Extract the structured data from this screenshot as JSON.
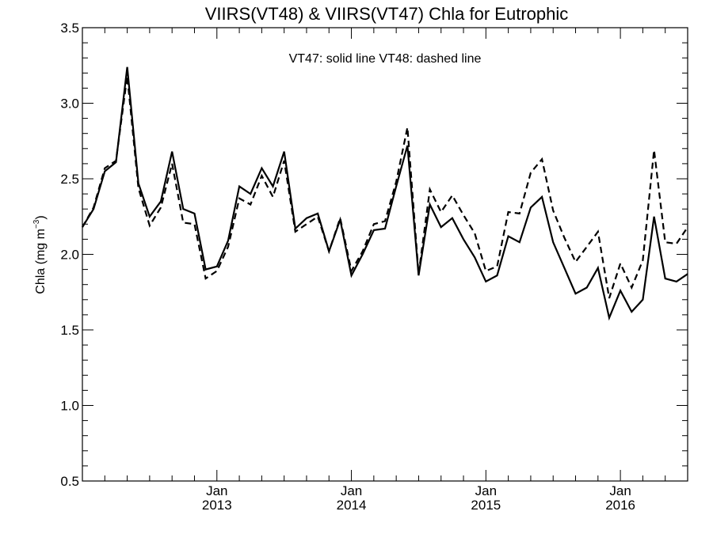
{
  "chart_data": {
    "type": "line",
    "title": "VIIRS(VT48) & VIIRS(VT47)  Chla for Eutrophic",
    "annotation": "VT47: solid line   VT48: dashed line",
    "ylabel_main": "Chla (mg m",
    "ylabel_sup": "−3",
    "ylabel_close": ")",
    "ylim": [
      0.5,
      3.5
    ],
    "y_ticks": [
      0.5,
      1.0,
      1.5,
      2.0,
      2.5,
      3.0,
      3.5
    ],
    "y_tick_labels": [
      "0.5",
      "1.0",
      "1.5",
      "2.0",
      "2.5",
      "3.0",
      "3.5"
    ],
    "x_range_months": [
      "2012-01",
      "2016-07"
    ],
    "x_labels": [
      {
        "month": "Jan",
        "year": "2013",
        "date": "2013-01"
      },
      {
        "month": "Jan",
        "year": "2014",
        "date": "2014-01"
      },
      {
        "month": "Jan",
        "year": "2015",
        "date": "2015-01"
      },
      {
        "month": "Jan",
        "year": "2016",
        "date": "2016-01"
      }
    ],
    "grid": false,
    "x": [
      "2012-01",
      "2012-02",
      "2012-03",
      "2012-04",
      "2012-05",
      "2012-06",
      "2012-07",
      "2012-08",
      "2012-09",
      "2012-10",
      "2012-11",
      "2012-12",
      "2013-01",
      "2013-02",
      "2013-03",
      "2013-04",
      "2013-05",
      "2013-06",
      "2013-07",
      "2013-08",
      "2013-09",
      "2013-10",
      "2013-11",
      "2013-12",
      "2014-01",
      "2014-02",
      "2014-03",
      "2014-04",
      "2014-05",
      "2014-06",
      "2014-07",
      "2014-08",
      "2014-09",
      "2014-10",
      "2014-11",
      "2014-12",
      "2015-01",
      "2015-02",
      "2015-03",
      "2015-04",
      "2015-05",
      "2015-06",
      "2015-07",
      "2015-08",
      "2015-09",
      "2015-10",
      "2015-11",
      "2015-12",
      "2016-01",
      "2016-02",
      "2016-03",
      "2016-04",
      "2016-05",
      "2016-06",
      "2016-07"
    ],
    "series": [
      {
        "name": "VT47",
        "style": "solid",
        "color": "#000000",
        "values": [
          2.18,
          2.3,
          2.55,
          2.61,
          3.24,
          2.47,
          2.25,
          2.35,
          2.68,
          2.3,
          2.27,
          1.9,
          1.92,
          2.09,
          2.45,
          2.4,
          2.57,
          2.45,
          2.68,
          2.17,
          2.24,
          2.27,
          2.02,
          2.23,
          1.86,
          2.0,
          2.16,
          2.17,
          2.45,
          2.72,
          1.86,
          2.33,
          2.18,
          2.24,
          2.1,
          1.98,
          1.82,
          1.86,
          2.12,
          2.08,
          2.31,
          2.38,
          2.08,
          1.91,
          1.74,
          1.78,
          1.91,
          1.58,
          1.76,
          1.62,
          1.7,
          2.25,
          1.84,
          1.82,
          1.87
        ]
      },
      {
        "name": "VT48",
        "style": "dashed",
        "color": "#000000",
        "values": [
          2.18,
          2.31,
          2.57,
          2.62,
          3.18,
          2.44,
          2.19,
          2.31,
          2.6,
          2.21,
          2.2,
          1.84,
          1.89,
          2.05,
          2.37,
          2.33,
          2.52,
          2.38,
          2.62,
          2.15,
          2.2,
          2.25,
          2.02,
          2.24,
          1.89,
          2.02,
          2.2,
          2.22,
          2.48,
          2.84,
          1.87,
          2.43,
          2.28,
          2.39,
          2.26,
          2.14,
          1.89,
          1.92,
          2.28,
          2.27,
          2.54,
          2.63,
          2.29,
          2.11,
          1.95,
          2.05,
          2.15,
          1.71,
          1.94,
          1.78,
          1.96,
          2.69,
          2.08,
          2.07,
          2.18
        ]
      }
    ]
  }
}
